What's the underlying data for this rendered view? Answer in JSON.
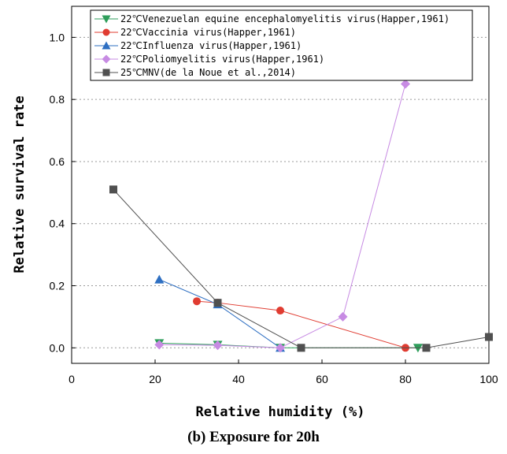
{
  "chart_data": {
    "type": "line",
    "caption": "(b) Exposure for 20h",
    "xlabel": "Relative humidity (%)",
    "ylabel": "Relative survival rate",
    "xlim": [
      0,
      100
    ],
    "ylim": [
      -0.05,
      1.1
    ],
    "xticks": [
      0,
      20,
      40,
      60,
      80,
      100
    ],
    "yticks": [
      0.0,
      0.2,
      0.4,
      0.6,
      0.8,
      1.0
    ],
    "grid": "horizontal-dotted",
    "legend_position": "top",
    "series": [
      {
        "name": "22℃Venezuelan equine encephalomyelitis virus(Happer,1961)",
        "color": "#2e9e5b",
        "marker": "triangle-down",
        "points": [
          [
            21,
            0.015
          ],
          [
            35,
            0.01
          ],
          [
            50,
            0.0
          ],
          [
            83,
            0.0
          ]
        ]
      },
      {
        "name": "22℃Vaccinia virus(Happer,1961)",
        "color": "#e03c31",
        "marker": "circle",
        "points": [
          [
            30,
            0.15
          ],
          [
            35,
            0.145
          ],
          [
            50,
            0.12
          ],
          [
            80,
            0.0
          ]
        ]
      },
      {
        "name": "22℃Influenza virus(Happer,1961)",
        "color": "#2e6fc2",
        "marker": "triangle-up",
        "points": [
          [
            21,
            0.22
          ],
          [
            35,
            0.14
          ],
          [
            50,
            0.0
          ]
        ]
      },
      {
        "name": "22℃Poliomyelitis virus(Happer,1961)",
        "color": "#c78be3",
        "marker": "diamond",
        "points": [
          [
            21,
            0.01
          ],
          [
            35,
            0.008
          ],
          [
            50,
            0.0
          ],
          [
            65,
            0.1
          ],
          [
            80,
            0.85
          ]
        ]
      },
      {
        "name": "25℃MNV(de la Noue et al.,2014)",
        "color": "#505050",
        "marker": "square",
        "points": [
          [
            10,
            0.51
          ],
          [
            35,
            0.145
          ],
          [
            55,
            0.0
          ],
          [
            85,
            0.0
          ],
          [
            100,
            0.035
          ]
        ]
      }
    ]
  }
}
